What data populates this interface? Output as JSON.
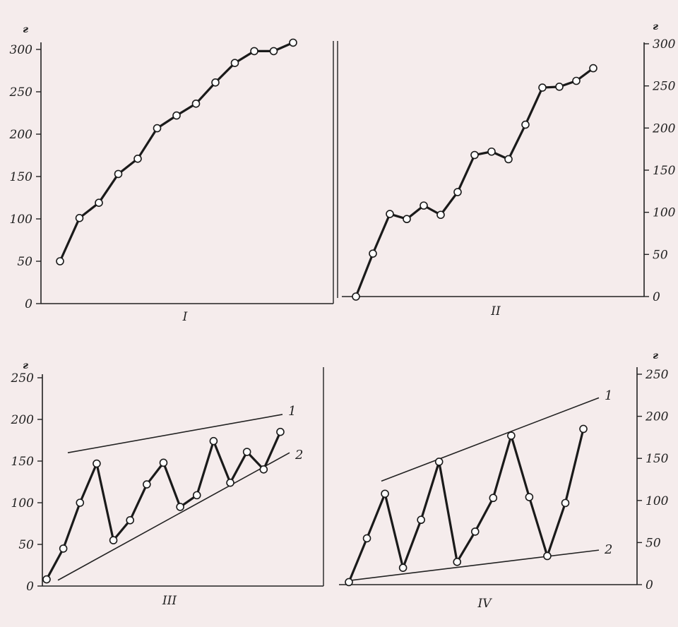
{
  "chart_data": [
    {
      "type": "line",
      "panel_label": "I",
      "y_unit": "г",
      "yticks": [
        0,
        50,
        100,
        150,
        200,
        250,
        300
      ],
      "ylim": [
        0,
        300
      ],
      "axis_side": "left",
      "grid": false,
      "series": [
        {
          "values": [
            50,
            101,
            119,
            153,
            171,
            207,
            222,
            236,
            261,
            284,
            298,
            298,
            308
          ]
        }
      ]
    },
    {
      "type": "line",
      "panel_label": "II",
      "y_unit": "г",
      "yticks": [
        0,
        50,
        100,
        150,
        200,
        250,
        300
      ],
      "ylim": [
        0,
        300
      ],
      "axis_side": "right",
      "grid": false,
      "series": [
        {
          "values": [
            0,
            51,
            98,
            92,
            108,
            97,
            124,
            168,
            172,
            163,
            204,
            248,
            249,
            256,
            271
          ]
        }
      ]
    },
    {
      "type": "line",
      "panel_label": "III",
      "y_unit": "г",
      "yticks": [
        0,
        50,
        100,
        150,
        200,
        250
      ],
      "ylim": [
        0,
        250
      ],
      "axis_side": "left",
      "grid": false,
      "series": [
        {
          "values": [
            8,
            45,
            100,
            147,
            55,
            79,
            122,
            148,
            95,
            109,
            174,
            124,
            161,
            140,
            185
          ]
        }
      ],
      "guide_lines": [
        {
          "label": "1",
          "from": 160,
          "to": 206
        },
        {
          "label": "2",
          "from": 7,
          "to": 160
        }
      ]
    },
    {
      "type": "line",
      "panel_label": "IV",
      "y_unit": "г",
      "yticks": [
        0,
        50,
        100,
        150,
        200,
        250
      ],
      "ylim": [
        0,
        250
      ],
      "axis_side": "right",
      "grid": false,
      "series": [
        {
          "values": [
            3,
            55,
            108,
            20,
            77,
            146,
            27,
            63,
            103,
            177,
            104,
            34,
            97,
            185
          ]
        }
      ],
      "guide_lines": [
        {
          "label": "1",
          "from": 123,
          "to": 222
        },
        {
          "label": "2",
          "from": 5,
          "to": 41
        }
      ]
    }
  ]
}
